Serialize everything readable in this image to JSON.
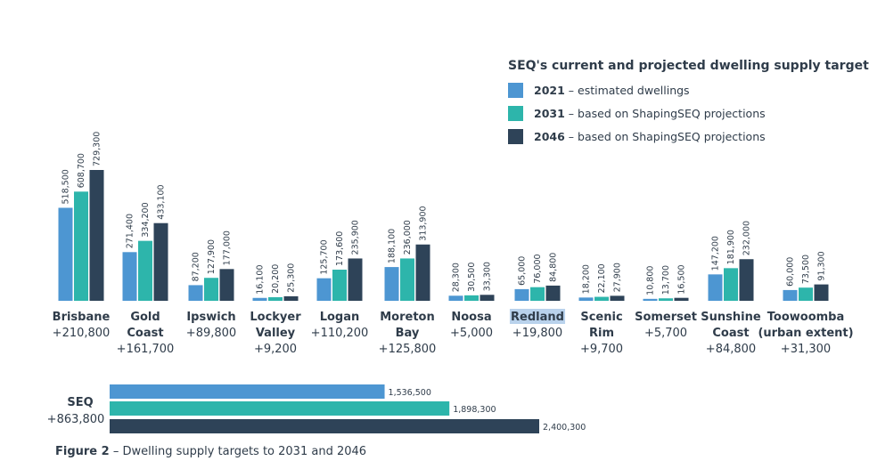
{
  "legend": {
    "title": "SEQ's current and projected dwelling supply targets",
    "items": [
      {
        "year": "2021",
        "text": "– estimated dwellings",
        "color": "#4d96d2"
      },
      {
        "year": "2031",
        "text": "– based on ShapingSEQ projections",
        "color": "#2db5ab"
      },
      {
        "year": "2046",
        "text": "– based on ShapingSEQ projections",
        "color": "#2e4358"
      }
    ]
  },
  "caption": {
    "label": "Figure 2",
    "text": "– Dwelling supply targets to 2031 and 2046"
  },
  "chart_data": {
    "type": "bar",
    "title": "SEQ's current and projected dwelling supply targets",
    "ylim": [
      0,
      760000
    ],
    "series_colors": [
      "#4d96d2",
      "#2db5ab",
      "#2e4358"
    ],
    "series": [
      {
        "name": "2021 – estimated dwellings"
      },
      {
        "name": "2031 – based on ShapingSEQ projections"
      },
      {
        "name": "2046 – based on ShapingSEQ projections"
      }
    ],
    "regions": [
      {
        "name": [
          "Brisbane"
        ],
        "change": "+210,800",
        "values": [
          518500,
          608700,
          729300
        ],
        "labels": [
          "518,500",
          "608,700",
          "729,300"
        ]
      },
      {
        "name": [
          "Gold",
          "Coast"
        ],
        "change": "+161,700",
        "values": [
          271400,
          334200,
          433100
        ],
        "labels": [
          "271,400",
          "334,200",
          "433,100"
        ]
      },
      {
        "name": [
          "Ipswich"
        ],
        "change": "+89,800",
        "values": [
          87200,
          127900,
          177000
        ],
        "labels": [
          "87,200",
          "127,900",
          "177,000"
        ]
      },
      {
        "name": [
          "Lockyer",
          "Valley"
        ],
        "change": "+9,200",
        "values": [
          16100,
          20200,
          25300
        ],
        "labels": [
          "16,100",
          "20,200",
          "25,300"
        ]
      },
      {
        "name": [
          "Logan"
        ],
        "change": "+110,200",
        "values": [
          125700,
          173600,
          235900
        ],
        "labels": [
          "125,700",
          "173,600",
          "235,900"
        ]
      },
      {
        "name": [
          "Moreton",
          "Bay"
        ],
        "change": "+125,800",
        "values": [
          188100,
          236000,
          313900
        ],
        "labels": [
          "188,100",
          "236,000",
          "313,900"
        ]
      },
      {
        "name": [
          "Noosa"
        ],
        "change": "+5,000",
        "values": [
          28300,
          30500,
          33300
        ],
        "labels": [
          "28,300",
          "30,500",
          "33,300"
        ]
      },
      {
        "name": [
          "Redland"
        ],
        "change": "+19,800",
        "values": [
          65000,
          76000,
          84800
        ],
        "labels": [
          "65,000",
          "76,000",
          "84,800"
        ],
        "selected": true
      },
      {
        "name": [
          "Scenic",
          "Rim"
        ],
        "change": "+9,700",
        "values": [
          18200,
          22100,
          27900
        ],
        "labels": [
          "18,200",
          "22,100",
          "27,900"
        ]
      },
      {
        "name": [
          "Somerset"
        ],
        "change": "+5,700",
        "values": [
          10800,
          13700,
          16500
        ],
        "labels": [
          "10,800",
          "13,700",
          "16,500"
        ]
      },
      {
        "name": [
          "Sunshine",
          "Coast"
        ],
        "change": "+84,800",
        "values": [
          147200,
          181900,
          232000
        ],
        "labels": [
          "147,200",
          "181,900",
          "232,000"
        ]
      },
      {
        "name": [
          "Toowoomba",
          "(urban extent)"
        ],
        "change": "+31,300",
        "values": [
          60000,
          73500,
          91300
        ],
        "labels": [
          "60,000",
          "73,500",
          "91,300"
        ]
      }
    ],
    "seq_total": {
      "name": "SEQ",
      "change": "+863,800",
      "values": [
        1536500,
        1898300,
        2400300
      ],
      "labels": [
        "1,536,500",
        "1,898,300",
        "2,400,300"
      ],
      "xlim": [
        0,
        2400300
      ]
    }
  }
}
